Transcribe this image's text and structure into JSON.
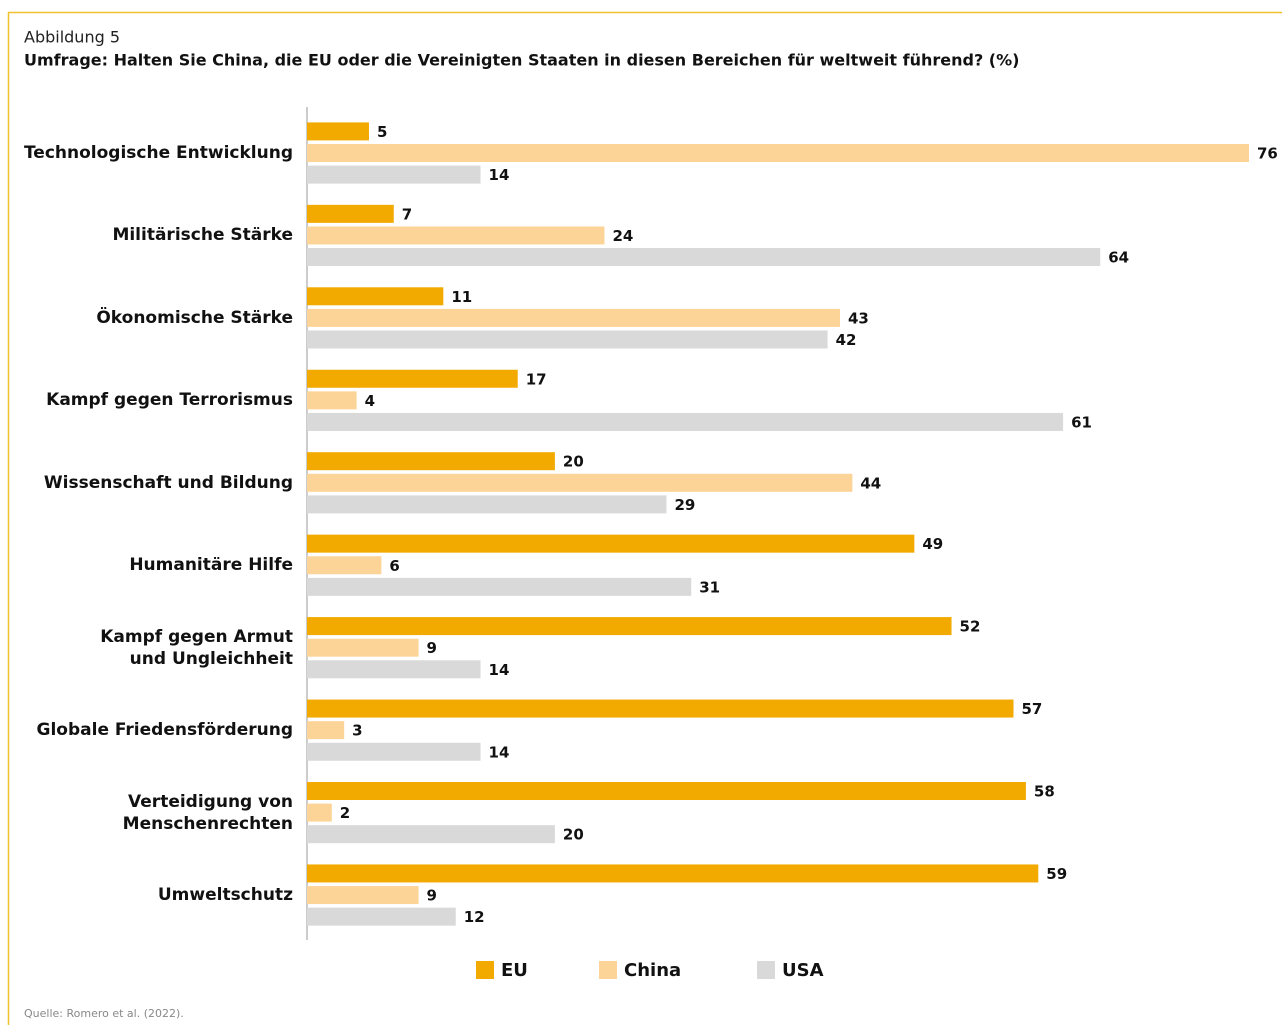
{
  "chart_data": {
    "type": "bar",
    "orientation": "horizontal",
    "label": "Abbildung 5",
    "title": "Umfrage: Halten Sie China, die EU oder die Vereinigten Staaten in diesen Bereichen für weltweit führend? (%)",
    "source": "Quelle: Romero et al. (2022).",
    "categories": [
      "Technologische Entwicklung",
      "Militärische Stärke",
      "Ökonomische Stärke",
      "Kampf gegen Terrorismus",
      "Wissenschaft und Bildung",
      "Humanitäre Hilfe",
      "Kampf gegen Armut\nund Ungleichheit",
      "Globale Friedensförderung",
      "Verteidigung von\nMenschenrechten",
      "Umweltschutz"
    ],
    "series": [
      {
        "name": "EU",
        "color": "#f2a900",
        "values": [
          5,
          7,
          11,
          17,
          20,
          49,
          52,
          57,
          58,
          59
        ]
      },
      {
        "name": "China",
        "color": "#fdd497",
        "values": [
          76,
          24,
          43,
          4,
          44,
          6,
          9,
          3,
          2,
          9
        ]
      },
      {
        "name": "USA",
        "color": "#d9d9d9",
        "values": [
          14,
          64,
          42,
          61,
          29,
          31,
          14,
          14,
          20,
          12
        ]
      }
    ],
    "xlim": [
      0,
      76
    ],
    "legend": "bottom"
  }
}
